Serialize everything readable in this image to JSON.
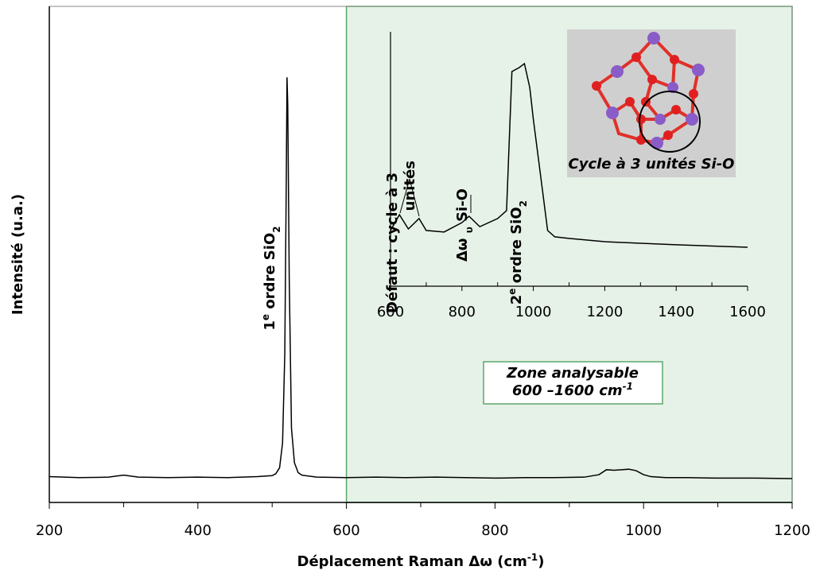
{
  "chart_data": [
    {
      "type": "line",
      "y_label": "Intensité (u.a.)",
      "x_label": [
        {
          "text": "Déplacement Raman Δω (cm"
        },
        {
          "text": "-1",
          "shift": "super"
        },
        {
          "text": ")"
        }
      ],
      "xlim": [
        200,
        1200
      ],
      "ylim": [
        0,
        100
      ],
      "xticks": [
        200,
        400,
        600,
        800,
        1000,
        1200
      ],
      "xminorticks": [
        300,
        500,
        700,
        900,
        1100
      ],
      "highlight": {
        "from": 600,
        "to": 1200,
        "color": "#e6f2e8",
        "border": "#5aa86a",
        "label": [
          [
            {
              "text": "Zone analysable"
            }
          ],
          [
            {
              "text": "600 –1600 cm"
            },
            {
              "text": "-1",
              "shift": "super"
            }
          ]
        ]
      },
      "annotations": [
        {
          "x": 520,
          "parts": [
            {
              "text": "1"
            },
            {
              "text": "e",
              "shift": "super"
            },
            {
              "text": " ordre SiO"
            },
            {
              "text": "2",
              "shift": "sub"
            }
          ]
        }
      ],
      "series": [
        {
          "color": "#000000",
          "x": [
            200,
            240,
            280,
            300,
            320,
            360,
            400,
            440,
            480,
            500,
            505,
            510,
            514,
            517,
            519,
            520,
            521,
            523,
            526,
            530,
            535,
            540,
            560,
            600,
            640,
            680,
            720,
            760,
            800,
            840,
            880,
            920,
            940,
            950,
            960,
            970,
            980,
            990,
            1000,
            1010,
            1030,
            1060,
            1100,
            1150,
            1200
          ],
          "values": [
            5.2,
            5.0,
            5.1,
            5.5,
            5.1,
            5.0,
            5.1,
            5.0,
            5.2,
            5.4,
            5.8,
            7,
            12,
            30,
            65,
            85.7,
            80,
            45,
            15,
            8,
            6,
            5.5,
            5.1,
            5.0,
            5.1,
            5.0,
            5.1,
            5.0,
            4.9,
            5.0,
            5.0,
            5.1,
            5.6,
            6.6,
            6.5,
            6.6,
            6.7,
            6.4,
            5.6,
            5.2,
            5.0,
            5.0,
            4.9,
            4.9,
            4.8
          ]
        }
      ]
    },
    {
      "type": "line",
      "xlim": [
        600,
        1600
      ],
      "ylim": [
        0,
        100
      ],
      "xticks": [
        600,
        800,
        1000,
        1200,
        1400,
        1600
      ],
      "xminorticks": [
        700,
        900,
        1100,
        1300,
        1500
      ],
      "annotations": [
        {
          "x": 650,
          "lines": [
            [
              {
                "text": "Défaut : cycle à 3"
              }
            ],
            [
              {
                "text": "unités"
              }
            ]
          ]
        },
        {
          "x": 820,
          "lines": [
            [
              {
                "text": "Δω "
              },
              {
                "text": "υ",
                "shift": "sub"
              },
              {
                "text": " Si-O"
              }
            ]
          ]
        },
        {
          "x": 960,
          "lines": [
            [
              {
                "text": "2"
              },
              {
                "text": "e",
                "shift": "super"
              },
              {
                "text": " ordre SiO"
              },
              {
                "text": "2",
                "shift": "sub"
              }
            ]
          ]
        }
      ],
      "image_caption": "Cycle à 3 unités Si-O",
      "series": [
        {
          "color": "#000000",
          "x": [
            600,
            625,
            650,
            680,
            700,
            750,
            800,
            820,
            850,
            900,
            925,
            940,
            960,
            975,
            990,
            1000,
            1020,
            1040,
            1060,
            1100,
            1200,
            1400,
            1600
          ],
          "values": [
            21.9,
            28.1,
            22.5,
            26.6,
            21.9,
            21.3,
            25,
            27.5,
            23.4,
            26.6,
            29.7,
            84.4,
            85.9,
            87.5,
            78.1,
            65.6,
            43.8,
            21.9,
            19.4,
            18.8,
            17.5,
            16.3,
            15.3
          ]
        }
      ]
    }
  ]
}
